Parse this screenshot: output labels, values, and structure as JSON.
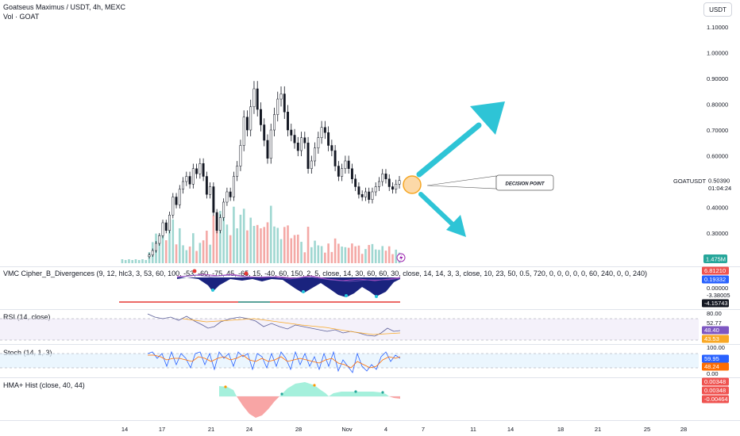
{
  "header": {
    "title": "Goatseus Maximus / USDT, 4h, MEXC",
    "subtitle": "Vol · GOAT",
    "currency_button": "USDT"
  },
  "colors": {
    "up": "#26a69a",
    "down": "#ef5350",
    "candle": "#131722",
    "arrow": "#2ec4d6",
    "circle_fill": "#fcd9a8",
    "circle_stroke": "#f5a623",
    "rsi_bg": "#ede7f6",
    "stoch_bg": "#e3f2fd",
    "hma_up": "#a5f0dc",
    "hma_down": "#f8a5a5"
  },
  "chart_data": {
    "type": "candlestick",
    "symbol": "GOATUSDT",
    "price_axis_ticks": [
      "1.10000",
      "1.00000",
      "0.90000",
      "0.80000",
      "0.70000",
      "0.60000",
      "0.50390",
      "0.40000",
      "0.30000"
    ],
    "ylim": [
      0.2,
      1.1
    ],
    "last_price": 0.5039,
    "countdown": "01:04:24",
    "symbol_label": "GOATUSDT",
    "date_ticks": [
      "14",
      "17",
      "21",
      "24",
      "28",
      "Nov",
      "4",
      "7",
      "11",
      "14",
      "18",
      "21",
      "25",
      "28"
    ],
    "annotation": "DECISION POINT",
    "volume_badge": "1.475M",
    "closes": [
      0.215,
      0.232,
      0.26,
      0.29,
      0.34,
      0.31,
      0.37,
      0.44,
      0.41,
      0.47,
      0.5,
      0.52,
      0.49,
      0.55,
      0.53,
      0.57,
      0.52,
      0.45,
      0.48,
      0.38,
      0.31,
      0.36,
      0.42,
      0.46,
      0.44,
      0.52,
      0.56,
      0.64,
      0.75,
      0.7,
      0.79,
      0.86,
      0.78,
      0.72,
      0.66,
      0.59,
      0.7,
      0.76,
      0.82,
      0.84,
      0.77,
      0.7,
      0.68,
      0.65,
      0.62,
      0.67,
      0.65,
      0.55,
      0.58,
      0.63,
      0.67,
      0.71,
      0.69,
      0.64,
      0.62,
      0.56,
      0.52,
      0.55,
      0.58,
      0.55,
      0.51,
      0.48,
      0.45,
      0.44,
      0.46,
      0.43,
      0.46,
      0.48,
      0.5,
      0.53,
      0.51,
      0.48,
      0.47,
      0.49,
      0.5039
    ]
  },
  "indicators": {
    "vmc": {
      "label": "VMC Cipher_B_Divergences (9, 12, hlc3, 3, 53, 60, 100, -53, -60, -75, 45, -65, 15, -40, 60, 150, 2, 5, close, 14, 30, 60, 60, 30, close, 14, 14, 3, 3, close, 10, 23, 50, 0.5, 720, 0, 0, 0, 0, 0, 60, 240, 0, 0, 240)",
      "badges": [
        "6.81210",
        "0.19332",
        "0.00000",
        "-3.38005",
        "-4.15743"
      ]
    },
    "rsi": {
      "label": "RSI (14, close)",
      "ticks": [
        "80.00",
        "52.77"
      ],
      "badges": [
        "48.40",
        "43.53"
      ]
    },
    "stoch": {
      "label": "Stoch (14, 1, 3)",
      "ticks": [
        "100.00",
        "0.00"
      ],
      "badges": [
        "59.95",
        "48.24"
      ]
    },
    "hma": {
      "label": "HMA+ Hist (close, 40, 44)",
      "badges": [
        "0.00348",
        "0.00348",
        "-0.00464"
      ]
    }
  }
}
